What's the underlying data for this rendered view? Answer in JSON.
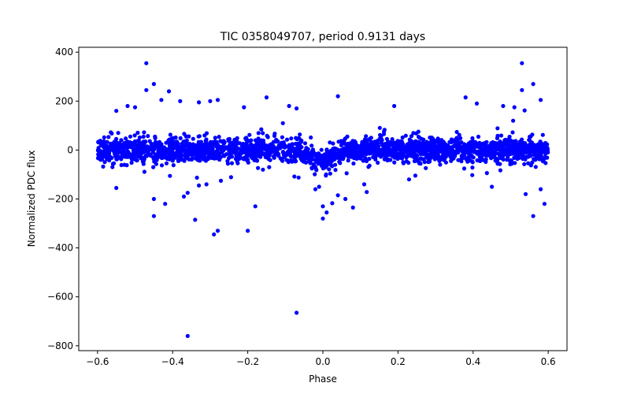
{
  "chart_data": {
    "type": "scatter",
    "title": "TIC 0358049707, period 0.9131 days",
    "xlabel": "Phase",
    "ylabel": "Normalized PDC flux",
    "xlim": [
      -0.65,
      0.65
    ],
    "ylim": [
      -820,
      420
    ],
    "xticks": [
      -0.6,
      -0.4,
      -0.2,
      0.0,
      0.2,
      0.4,
      0.6
    ],
    "xtick_labels": [
      "−0.6",
      "−0.4",
      "−0.2",
      "0.0",
      "0.2",
      "0.4",
      "0.6"
    ],
    "yticks": [
      400,
      200,
      0,
      -200,
      -400,
      -600,
      -800
    ],
    "ytick_labels": [
      "400",
      "200",
      "0",
      "−200",
      "−400",
      "−600",
      "−800"
    ],
    "marker_color": "#0000ff",
    "grid": false,
    "band": {
      "x_range": [
        -0.6,
        0.6
      ],
      "core_scatter": 25,
      "dip_center": 0.0,
      "dip_depth": -45,
      "dip_width": 0.03,
      "n_points": 2400
    },
    "outliers": [
      {
        "x": -0.47,
        "y": 355
      },
      {
        "x": 0.53,
        "y": 355
      },
      {
        "x": -0.47,
        "y": 245
      },
      {
        "x": -0.45,
        "y": 270
      },
      {
        "x": 0.56,
        "y": 270
      },
      {
        "x": 0.53,
        "y": 245
      },
      {
        "x": -0.41,
        "y": 240
      },
      {
        "x": -0.43,
        "y": 205
      },
      {
        "x": -0.38,
        "y": 200
      },
      {
        "x": -0.33,
        "y": 195
      },
      {
        "x": -0.3,
        "y": 200
      },
      {
        "x": -0.28,
        "y": 205
      },
      {
        "x": -0.15,
        "y": 215
      },
      {
        "x": 0.04,
        "y": 220
      },
      {
        "x": 0.38,
        "y": 215
      },
      {
        "x": 0.41,
        "y": 190
      },
      {
        "x": 0.58,
        "y": 205
      },
      {
        "x": -0.55,
        "y": 160
      },
      {
        "x": -0.52,
        "y": 180
      },
      {
        "x": -0.5,
        "y": 175
      },
      {
        "x": -0.21,
        "y": 175
      },
      {
        "x": -0.09,
        "y": 180
      },
      {
        "x": -0.07,
        "y": 170
      },
      {
        "x": 0.19,
        "y": 180
      },
      {
        "x": 0.48,
        "y": 180
      },
      {
        "x": 0.51,
        "y": 175
      },
      {
        "x": -0.45,
        "y": -200
      },
      {
        "x": -0.45,
        "y": -270
      },
      {
        "x": -0.37,
        "y": -190
      },
      {
        "x": -0.36,
        "y": -175
      },
      {
        "x": -0.34,
        "y": -285
      },
      {
        "x": -0.33,
        "y": -145
      },
      {
        "x": -0.31,
        "y": -140
      },
      {
        "x": -0.29,
        "y": -345
      },
      {
        "x": -0.28,
        "y": -330
      },
      {
        "x": -0.2,
        "y": -330
      },
      {
        "x": -0.18,
        "y": -230
      },
      {
        "x": -0.55,
        "y": -155
      },
      {
        "x": -0.42,
        "y": -220
      },
      {
        "x": -0.07,
        "y": -665
      },
      {
        "x": -0.36,
        "y": -760
      },
      {
        "x": -0.02,
        "y": -160
      },
      {
        "x": -0.01,
        "y": -150
      },
      {
        "x": 0.0,
        "y": -230
      },
      {
        "x": 0.0,
        "y": -280
      },
      {
        "x": 0.01,
        "y": -255
      },
      {
        "x": 0.04,
        "y": -185
      },
      {
        "x": 0.06,
        "y": -200
      },
      {
        "x": 0.08,
        "y": -235
      },
      {
        "x": 0.11,
        "y": -140
      },
      {
        "x": 0.45,
        "y": -150
      },
      {
        "x": 0.54,
        "y": -180
      },
      {
        "x": 0.56,
        "y": -270
      },
      {
        "x": 0.59,
        "y": -220
      },
      {
        "x": 0.58,
        "y": -160
      }
    ]
  }
}
